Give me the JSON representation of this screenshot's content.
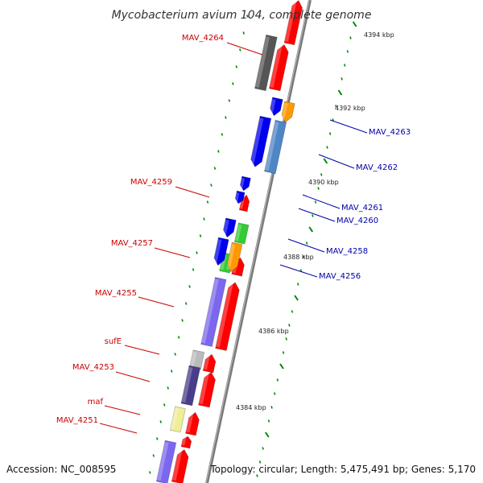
{
  "title": "Mycobacterium avium 104, complete genome",
  "accession": "Accession: NC_008595",
  "topology": "Topology: circular; Length: 5,475,491 bp; Genes: 5,170",
  "scale_labels": [
    "4394 kbp",
    "4392 kbp",
    "4390 kbp",
    "4388 kbp",
    "4386 kbp",
    "4384 kbp"
  ],
  "gene_labels": {
    "left": [
      "MAV_4264",
      "MAV_4259",
      "MAV_4257",
      "MAV_4255",
      "sufE",
      "MAV_4253",
      "maf",
      "MAV_4251"
    ],
    "right": [
      "MAV_4263",
      "MAV_4262",
      "MAV_4261",
      "MAV_4260",
      "MAV_4258",
      "MAV_4256"
    ]
  },
  "colors": {
    "forward_label": "#cc0000",
    "reverse_label": "#0000aa",
    "backbone": "#888888",
    "tick": "#008800",
    "red": "#ff0000",
    "blue": "#0000ee",
    "orange": "#ff9900",
    "steelblue": "#4f86c6",
    "green": "#33cc33",
    "purple": "#7b68ee",
    "darkpurple": "#483d8b",
    "gray": "#555555",
    "lightgray": "#bbbbbb",
    "yellow": "#eeee99"
  }
}
